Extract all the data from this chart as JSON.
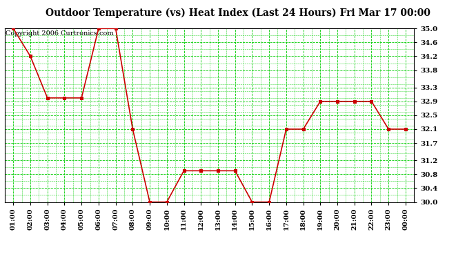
{
  "title": "Outdoor Temperature (vs) Heat Index (Last 24 Hours) Fri Mar 17 00:00",
  "copyright": "Copyright 2006 Curtronics.com",
  "x_labels": [
    "01:00",
    "02:00",
    "03:00",
    "04:00",
    "05:00",
    "06:00",
    "07:00",
    "08:00",
    "09:00",
    "10:00",
    "11:00",
    "12:00",
    "13:00",
    "14:00",
    "15:00",
    "16:00",
    "17:00",
    "18:00",
    "19:00",
    "20:00",
    "21:00",
    "22:00",
    "23:00",
    "00:00"
  ],
  "y_values": [
    35.0,
    34.2,
    33.0,
    33.0,
    33.0,
    35.0,
    35.0,
    32.1,
    30.0,
    30.0,
    30.9,
    30.9,
    30.9,
    30.9,
    30.0,
    30.0,
    32.1,
    32.1,
    32.9,
    32.9,
    32.9,
    32.9,
    32.1,
    32.1
  ],
  "y_min": 30.0,
  "y_max": 35.0,
  "y_ticks": [
    30.0,
    30.4,
    30.8,
    31.2,
    31.7,
    32.1,
    32.5,
    32.9,
    33.3,
    33.8,
    34.2,
    34.6,
    35.0
  ],
  "line_color": "#cc0000",
  "marker_color": "#cc0000",
  "bg_color": "#ffffff",
  "plot_bg_color": "#ffffff",
  "grid_color": "#00cc00",
  "title_fontsize": 10,
  "copyright_fontsize": 7
}
